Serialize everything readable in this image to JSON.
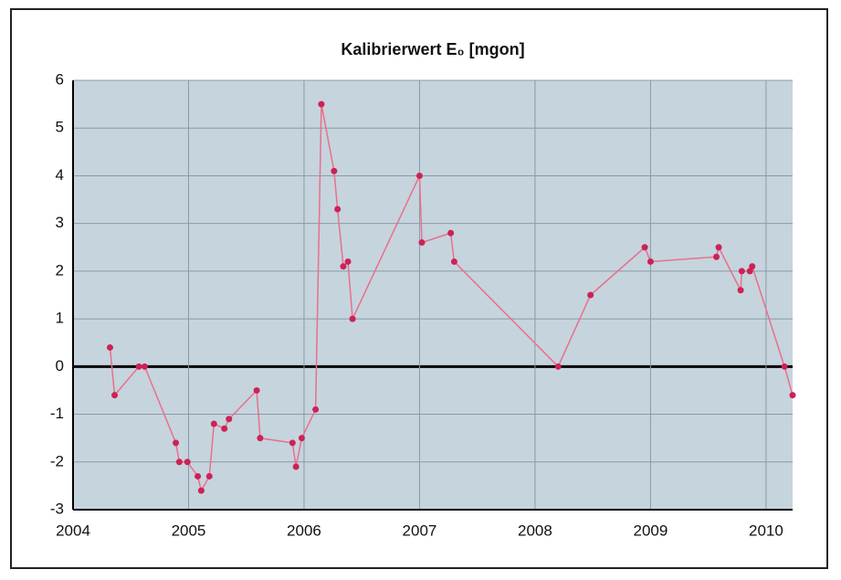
{
  "chart_data": {
    "type": "line",
    "title": "Kalibrierwert E₀ [mgon]",
    "x": [
      2004.32,
      2004.36,
      2004.57,
      2004.62,
      2004.89,
      2004.92,
      2004.99,
      2005.08,
      2005.11,
      2005.18,
      2005.22,
      2005.31,
      2005.35,
      2005.59,
      2005.62,
      2005.9,
      2005.93,
      2005.98,
      2006.1,
      2006.15,
      2006.26,
      2006.29,
      2006.34,
      2006.38,
      2006.42,
      2007.0,
      2007.02,
      2007.27,
      2007.3,
      2008.2,
      2008.48,
      2008.95,
      2009.0,
      2009.57,
      2009.59,
      2009.78,
      2009.79,
      2009.86,
      2009.88,
      2010.16,
      2010.23
    ],
    "values": [
      0.4,
      -0.6,
      0,
      0,
      -1.6,
      -2.0,
      -2.0,
      -2.3,
      -2.6,
      -2.3,
      -1.2,
      -1.3,
      -1.1,
      -0.5,
      -1.5,
      -1.6,
      -2.1,
      -1.5,
      -0.9,
      5.5,
      4.1,
      3.3,
      2.1,
      2.2,
      1.0,
      4.0,
      2.6,
      2.8,
      2.2,
      0.0,
      1.5,
      2.5,
      2.2,
      2.3,
      2.5,
      1.6,
      2.0,
      2.0,
      2.1,
      0.0,
      -0.6
    ],
    "color": "#e8708a",
    "marker_color": "#cc2255",
    "xlim": [
      2004,
      2010.23
    ],
    "xticks": [
      2004,
      2005,
      2006,
      2007,
      2008,
      2009,
      2010
    ],
    "ylim": [
      -3,
      6
    ],
    "yticks": [
      -3,
      -2,
      -1,
      0,
      1,
      2,
      3,
      4,
      5,
      6
    ],
    "grid": true
  }
}
